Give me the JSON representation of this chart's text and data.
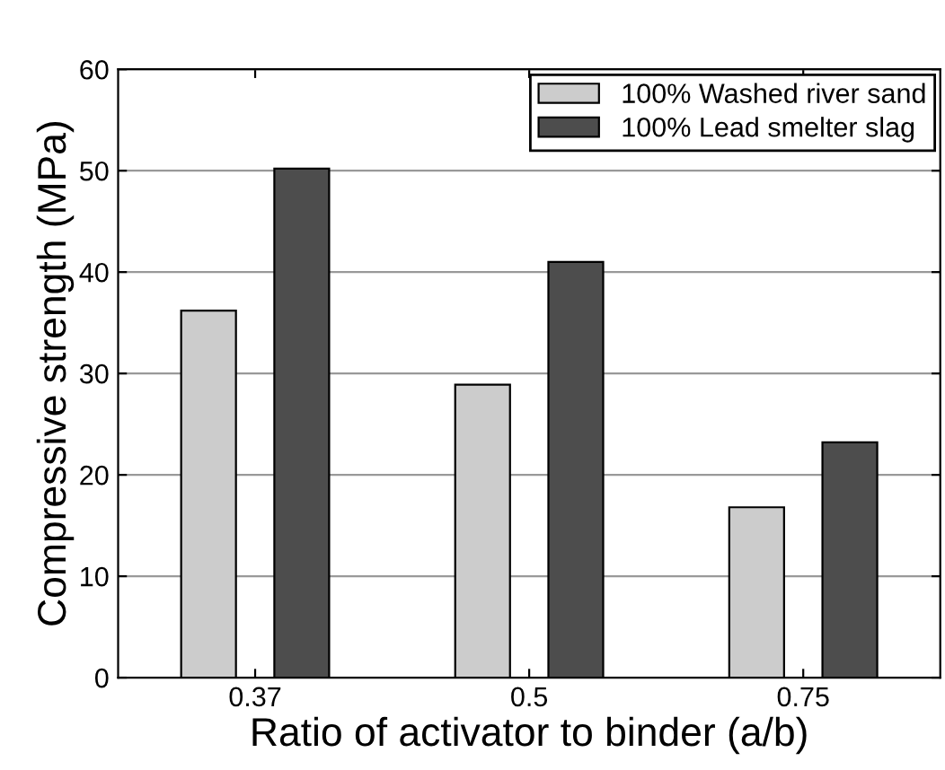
{
  "chart_data": {
    "type": "bar",
    "xlabel": "Ratio of activator to binder (a/b)",
    "ylabel": "Compressive strength (MPa)",
    "categories": [
      "0.37",
      "0.5",
      "0.75"
    ],
    "series": [
      {
        "name": "100% Washed river sand",
        "color": "#cccccc",
        "values": [
          36.2,
          28.9,
          16.8
        ]
      },
      {
        "name": "100% Lead smelter slag",
        "color": "#4d4d4d",
        "values": [
          50.2,
          41.0,
          23.2
        ]
      }
    ],
    "ylim": [
      0,
      60
    ],
    "yticks": [
      0,
      10,
      20,
      30,
      40,
      50,
      60
    ],
    "grid": "y",
    "legend": "top right"
  }
}
